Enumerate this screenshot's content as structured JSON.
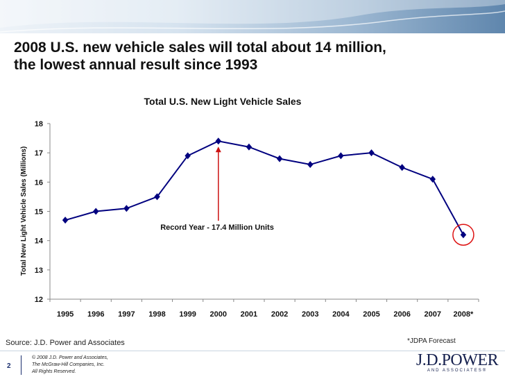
{
  "slide": {
    "title": "2008 U.S. new vehicle sales will total about 14 million, the lowest annual result since 1993",
    "source": "Source: J.D. Power and Associates",
    "forecast_note": "*JDPA Forecast",
    "page_number": "2",
    "copyright_lines": [
      "© 2008 J.D. Power and Associates,",
      "The McGraw-Hill Companies, Inc.",
      "All Rights Reserved."
    ],
    "logo_text": "J.D.POWER",
    "logo_subtext": "AND ASSOCIATES®"
  },
  "chart_data": {
    "type": "line",
    "title": "Total U.S. New Light Vehicle Sales",
    "xlabel": "",
    "ylabel": "Total New Light Vehicle Sales (Millions)",
    "ylim": [
      12,
      18
    ],
    "yticks": [
      "12",
      "13",
      "14",
      "15",
      "16",
      "17",
      "18"
    ],
    "categories": [
      "1995",
      "1996",
      "1997",
      "1998",
      "1999",
      "2000",
      "2001",
      "2002",
      "2003",
      "2004",
      "2005",
      "2006",
      "2007",
      "2008*"
    ],
    "series": [
      {
        "name": "Total U.S. New Light Vehicle Sales",
        "values": [
          14.7,
          15.0,
          15.1,
          15.5,
          16.9,
          17.4,
          17.2,
          16.8,
          16.6,
          16.9,
          17.0,
          16.5,
          16.1,
          14.2
        ],
        "color": "#00007f"
      }
    ],
    "annotation": {
      "text": "Record Year - 17.4 Million Units",
      "category": "2000",
      "color": "#cc1111"
    },
    "highlight": {
      "category": "2008*",
      "color": "#dd1111"
    },
    "grid": false
  }
}
